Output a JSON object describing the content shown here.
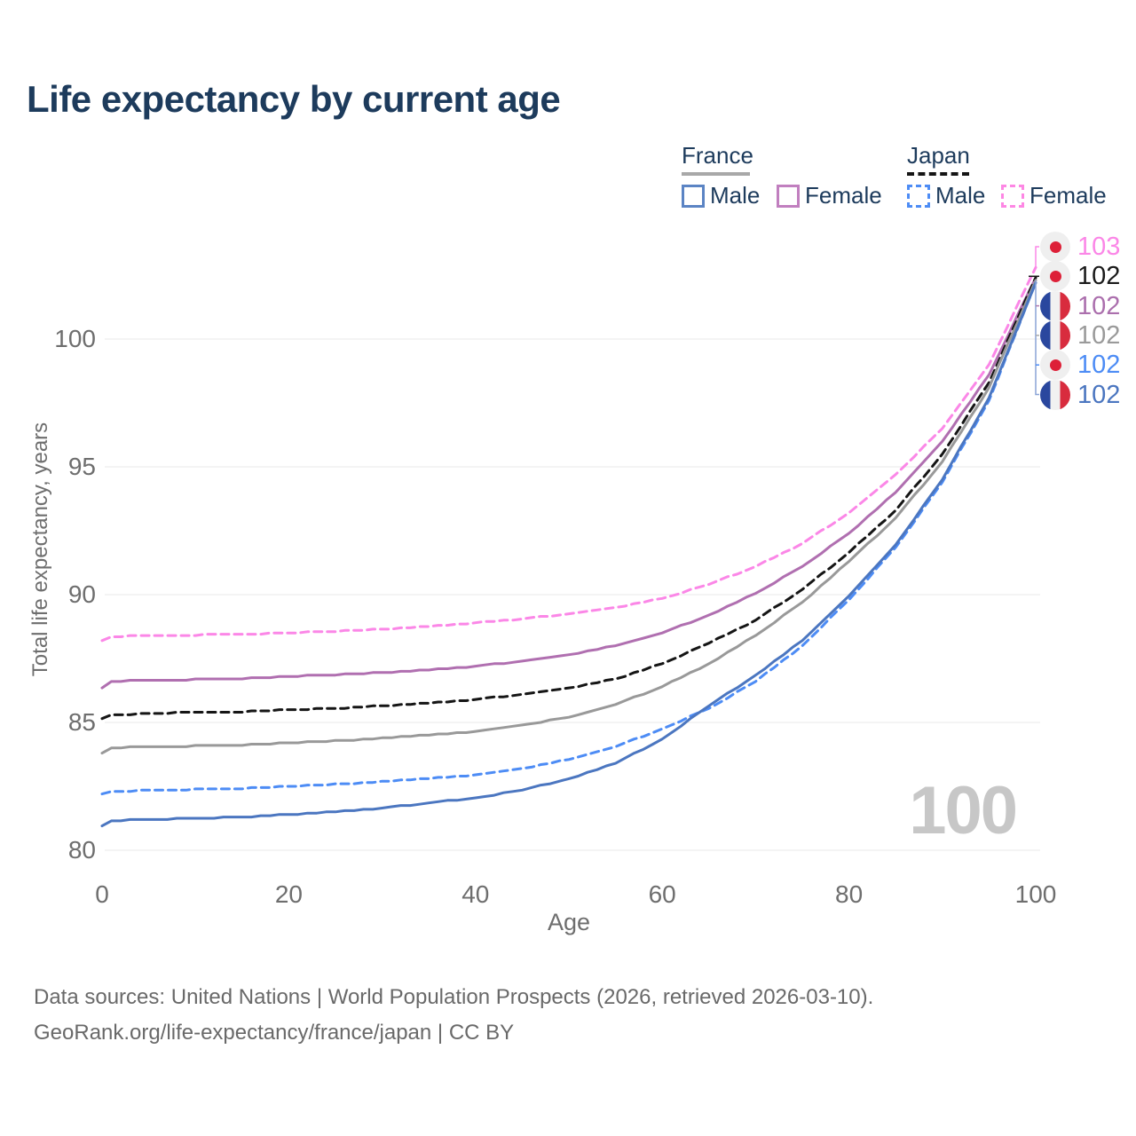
{
  "title": "Life expectancy by current age",
  "legend": {
    "france": {
      "title": "France",
      "male": "Male",
      "female": "Female"
    },
    "japan": {
      "title": "Japan",
      "male": "Male",
      "female": "Female"
    }
  },
  "watermark": "100",
  "footer": {
    "line1": "Data sources: United Nations | World Population Prospects (2026, retrieved 2026-03-10).",
    "line2": "GeoRank.org/life-expectancy/france/japan | CC BY"
  },
  "colors": {
    "title_navy": "#1d3b5c",
    "grid": "#e9e9e9",
    "tick_text": "#6e6e6e",
    "watermark_gray": "#c7c7c7",
    "france_male": "#4b76c0",
    "france_female": "#b06fb0",
    "france_total": "#999999",
    "japan_male": "#4d8cf5",
    "japan_female": "#fb87e7",
    "japan_total": "#151515",
    "leader_spine": "#8aa3d6"
  },
  "chart_data": {
    "type": "line",
    "title": "Life expectancy by current age",
    "xlabel": "Age",
    "ylabel": "Total life expectancy, years",
    "xlim": [
      0,
      100
    ],
    "ylim": [
      79.5,
      103.5
    ],
    "x_ticks": [
      0,
      20,
      40,
      60,
      80,
      100
    ],
    "y_ticks": [
      80,
      85,
      90,
      95,
      100
    ],
    "grid": "horizontal",
    "legend_position": "top-right",
    "series": [
      {
        "name": "Japan Female",
        "color": "#fb87e7",
        "dash": true,
        "points": [
          [
            0,
            88.2
          ],
          [
            1,
            88.35
          ],
          [
            5,
            88.4
          ],
          [
            10,
            88.42
          ],
          [
            15,
            88.45
          ],
          [
            20,
            88.5
          ],
          [
            25,
            88.57
          ],
          [
            30,
            88.65
          ],
          [
            35,
            88.75
          ],
          [
            40,
            88.9
          ],
          [
            45,
            89.05
          ],
          [
            50,
            89.25
          ],
          [
            55,
            89.5
          ],
          [
            60,
            89.85
          ],
          [
            65,
            90.4
          ],
          [
            70,
            91.1
          ],
          [
            75,
            92.0
          ],
          [
            80,
            93.2
          ],
          [
            85,
            94.7
          ],
          [
            90,
            96.5
          ],
          [
            95,
            99.0
          ],
          [
            100,
            102.8
          ]
        ]
      },
      {
        "name": "France Female",
        "color": "#b06fb0",
        "dash": false,
        "points": [
          [
            0,
            86.35
          ],
          [
            1,
            86.6
          ],
          [
            5,
            86.65
          ],
          [
            10,
            86.68
          ],
          [
            15,
            86.72
          ],
          [
            20,
            86.8
          ],
          [
            25,
            86.87
          ],
          [
            30,
            86.95
          ],
          [
            35,
            87.05
          ],
          [
            40,
            87.2
          ],
          [
            45,
            87.4
          ],
          [
            50,
            87.65
          ],
          [
            55,
            88.0
          ],
          [
            60,
            88.5
          ],
          [
            65,
            89.2
          ],
          [
            70,
            90.05
          ],
          [
            75,
            91.1
          ],
          [
            80,
            92.4
          ],
          [
            85,
            94.0
          ],
          [
            90,
            96.0
          ],
          [
            95,
            98.6
          ],
          [
            100,
            102.4
          ]
        ]
      },
      {
        "name": "Japan Total",
        "color": "#151515",
        "dash": true,
        "points": [
          [
            0,
            85.15
          ],
          [
            1,
            85.3
          ],
          [
            5,
            85.35
          ],
          [
            10,
            85.4
          ],
          [
            15,
            85.42
          ],
          [
            20,
            85.5
          ],
          [
            25,
            85.55
          ],
          [
            30,
            85.65
          ],
          [
            35,
            85.75
          ],
          [
            40,
            85.9
          ],
          [
            45,
            86.1
          ],
          [
            50,
            86.35
          ],
          [
            55,
            86.7
          ],
          [
            60,
            87.3
          ],
          [
            65,
            88.1
          ],
          [
            70,
            89.0
          ],
          [
            75,
            90.2
          ],
          [
            80,
            91.65
          ],
          [
            85,
            93.3
          ],
          [
            90,
            95.5
          ],
          [
            95,
            98.3
          ],
          [
            100,
            102.4
          ]
        ]
      },
      {
        "name": "France Total",
        "color": "#999999",
        "dash": false,
        "points": [
          [
            0,
            83.8
          ],
          [
            1,
            84.0
          ],
          [
            5,
            84.05
          ],
          [
            10,
            84.08
          ],
          [
            15,
            84.12
          ],
          [
            20,
            84.2
          ],
          [
            25,
            84.28
          ],
          [
            30,
            84.38
          ],
          [
            35,
            84.5
          ],
          [
            40,
            84.65
          ],
          [
            45,
            84.9
          ],
          [
            50,
            85.2
          ],
          [
            55,
            85.7
          ],
          [
            60,
            86.4
          ],
          [
            65,
            87.3
          ],
          [
            70,
            88.4
          ],
          [
            75,
            89.7
          ],
          [
            80,
            91.3
          ],
          [
            85,
            93.0
          ],
          [
            90,
            95.2
          ],
          [
            95,
            98.1
          ],
          [
            100,
            102.3
          ]
        ]
      },
      {
        "name": "Japan Male",
        "color": "#4d8cf5",
        "dash": true,
        "points": [
          [
            0,
            82.2
          ],
          [
            1,
            82.3
          ],
          [
            5,
            82.35
          ],
          [
            10,
            82.38
          ],
          [
            15,
            82.42
          ],
          [
            20,
            82.5
          ],
          [
            25,
            82.58
          ],
          [
            30,
            82.68
          ],
          [
            35,
            82.8
          ],
          [
            40,
            82.95
          ],
          [
            45,
            83.2
          ],
          [
            50,
            83.55
          ],
          [
            55,
            84.05
          ],
          [
            60,
            84.75
          ],
          [
            65,
            85.55
          ],
          [
            70,
            86.6
          ],
          [
            75,
            88.0
          ],
          [
            80,
            89.8
          ],
          [
            85,
            91.85
          ],
          [
            90,
            94.4
          ],
          [
            95,
            97.6
          ],
          [
            100,
            102.2
          ]
        ]
      },
      {
        "name": "France Male",
        "color": "#4b76c0",
        "dash": false,
        "points": [
          [
            0,
            80.95
          ],
          [
            1,
            81.15
          ],
          [
            5,
            81.2
          ],
          [
            10,
            81.25
          ],
          [
            15,
            81.3
          ],
          [
            20,
            81.4
          ],
          [
            25,
            81.5
          ],
          [
            30,
            81.65
          ],
          [
            35,
            81.85
          ],
          [
            40,
            82.05
          ],
          [
            45,
            82.35
          ],
          [
            50,
            82.8
          ],
          [
            55,
            83.4
          ],
          [
            60,
            84.35
          ],
          [
            65,
            85.65
          ],
          [
            70,
            86.85
          ],
          [
            75,
            88.2
          ],
          [
            80,
            89.95
          ],
          [
            85,
            91.95
          ],
          [
            90,
            94.5
          ],
          [
            95,
            97.7
          ],
          [
            100,
            102.2
          ]
        ]
      }
    ],
    "end_labels": [
      {
        "flag": "japan",
        "value": "103",
        "color": "#fb87e7",
        "series": "Japan Female"
      },
      {
        "flag": "japan",
        "value": "102",
        "color": "#1a1a1a",
        "series": "Japan Total"
      },
      {
        "flag": "france",
        "value": "102",
        "color": "#ab6fad",
        "series": "France Female"
      },
      {
        "flag": "france",
        "value": "102",
        "color": "#9a9a9a",
        "series": "France Total"
      },
      {
        "flag": "japan",
        "value": "102",
        "color": "#4d8cf5",
        "series": "Japan Male"
      },
      {
        "flag": "france",
        "value": "102",
        "color": "#4b76c0",
        "series": "France Male"
      }
    ]
  }
}
